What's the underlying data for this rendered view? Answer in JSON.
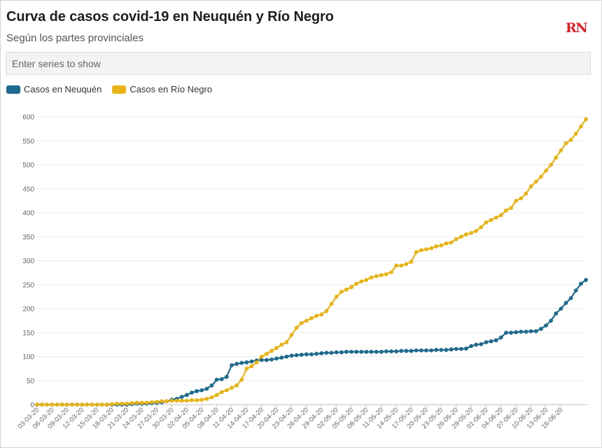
{
  "header": {
    "title": "Curva de casos covid-19 en Neuquén y Río Negro",
    "subtitle": "Según los partes provinciales",
    "logo_text": "RN"
  },
  "search": {
    "placeholder": "Enter series to show"
  },
  "colors": {
    "neuquen": "#1f6a8f",
    "rionegro": "#e8b418",
    "grid": "#ececec",
    "brand": "#e21e26"
  },
  "chart_data": {
    "type": "line",
    "title": "Curva de casos covid-19 en Neuquén y Río Negro",
    "xlabel": "",
    "ylabel": "",
    "ylim": [
      0,
      600
    ],
    "yticks": [
      0,
      50,
      100,
      150,
      200,
      250,
      300,
      350,
      400,
      450,
      500,
      550,
      600
    ],
    "x_tick_labels": [
      "03-03-20",
      "06-03-20",
      "09-03-20",
      "12-03-20",
      "15-03-20",
      "18-03-20",
      "21-03-20",
      "24-03-20",
      "27-03-20",
      "30-03-20",
      "02-04-20",
      "05-04-20",
      "08-04-20",
      "11-04-20",
      "14-04-20",
      "17-04-20",
      "20-04-20",
      "23-04-20",
      "26-04-20",
      "29-04-20",
      "02-05-20",
      "05-05-20",
      "08-05-20",
      "11-05-20",
      "14-05-20",
      "17-05-20",
      "20-05-20",
      "23-05-20",
      "26-05-20",
      "29-05-20",
      "01-06-20",
      "04-06-20",
      "07-06-20",
      "10-06-20",
      "13-06-20",
      "16-06-20"
    ],
    "series": [
      {
        "name": "Casos en Neuquén",
        "values": [
          0,
          0,
          0,
          0,
          0,
          0,
          0,
          0,
          0,
          0,
          0,
          0,
          0,
          0,
          0,
          0,
          0,
          0,
          0,
          1,
          2,
          2,
          2,
          3,
          4,
          5,
          7,
          10,
          12,
          16,
          20,
          25,
          28,
          30,
          33,
          40,
          52,
          53,
          58,
          82,
          85,
          87,
          88,
          90,
          92,
          93,
          93,
          94,
          96,
          98,
          100,
          102,
          103,
          104,
          105,
          105,
          106,
          107,
          108,
          108,
          109,
          109,
          110,
          110,
          110,
          110,
          110,
          110,
          110,
          110,
          111,
          111,
          111,
          112,
          112,
          112,
          113,
          113,
          113,
          113,
          114,
          114,
          114,
          115,
          116,
          116,
          117,
          122,
          125,
          126,
          130,
          132,
          134,
          140,
          150,
          150,
          151,
          152,
          152,
          153,
          153,
          158,
          165,
          175,
          190,
          200,
          212,
          222,
          238,
          252,
          260
        ]
      },
      {
        "name": "Casos en Río Negro",
        "values": [
          0,
          0,
          0,
          0,
          0,
          0,
          0,
          0,
          0,
          0,
          0,
          0,
          0,
          0,
          0,
          1,
          2,
          2,
          2,
          3,
          4,
          4,
          4,
          5,
          6,
          7,
          7,
          8,
          8,
          8,
          8,
          9,
          9,
          10,
          12,
          15,
          20,
          26,
          30,
          35,
          40,
          52,
          75,
          80,
          88,
          100,
          106,
          112,
          118,
          125,
          130,
          145,
          160,
          170,
          175,
          180,
          185,
          188,
          195,
          210,
          225,
          235,
          240,
          245,
          252,
          257,
          260,
          265,
          268,
          270,
          272,
          276,
          290,
          290,
          293,
          298,
          318,
          322,
          324,
          326,
          330,
          332,
          336,
          338,
          345,
          350,
          355,
          358,
          362,
          370,
          380,
          385,
          390,
          395,
          405,
          410,
          425,
          430,
          440,
          455,
          465,
          475,
          488,
          500,
          515,
          530,
          545,
          552,
          565,
          580,
          595
        ]
      }
    ]
  }
}
